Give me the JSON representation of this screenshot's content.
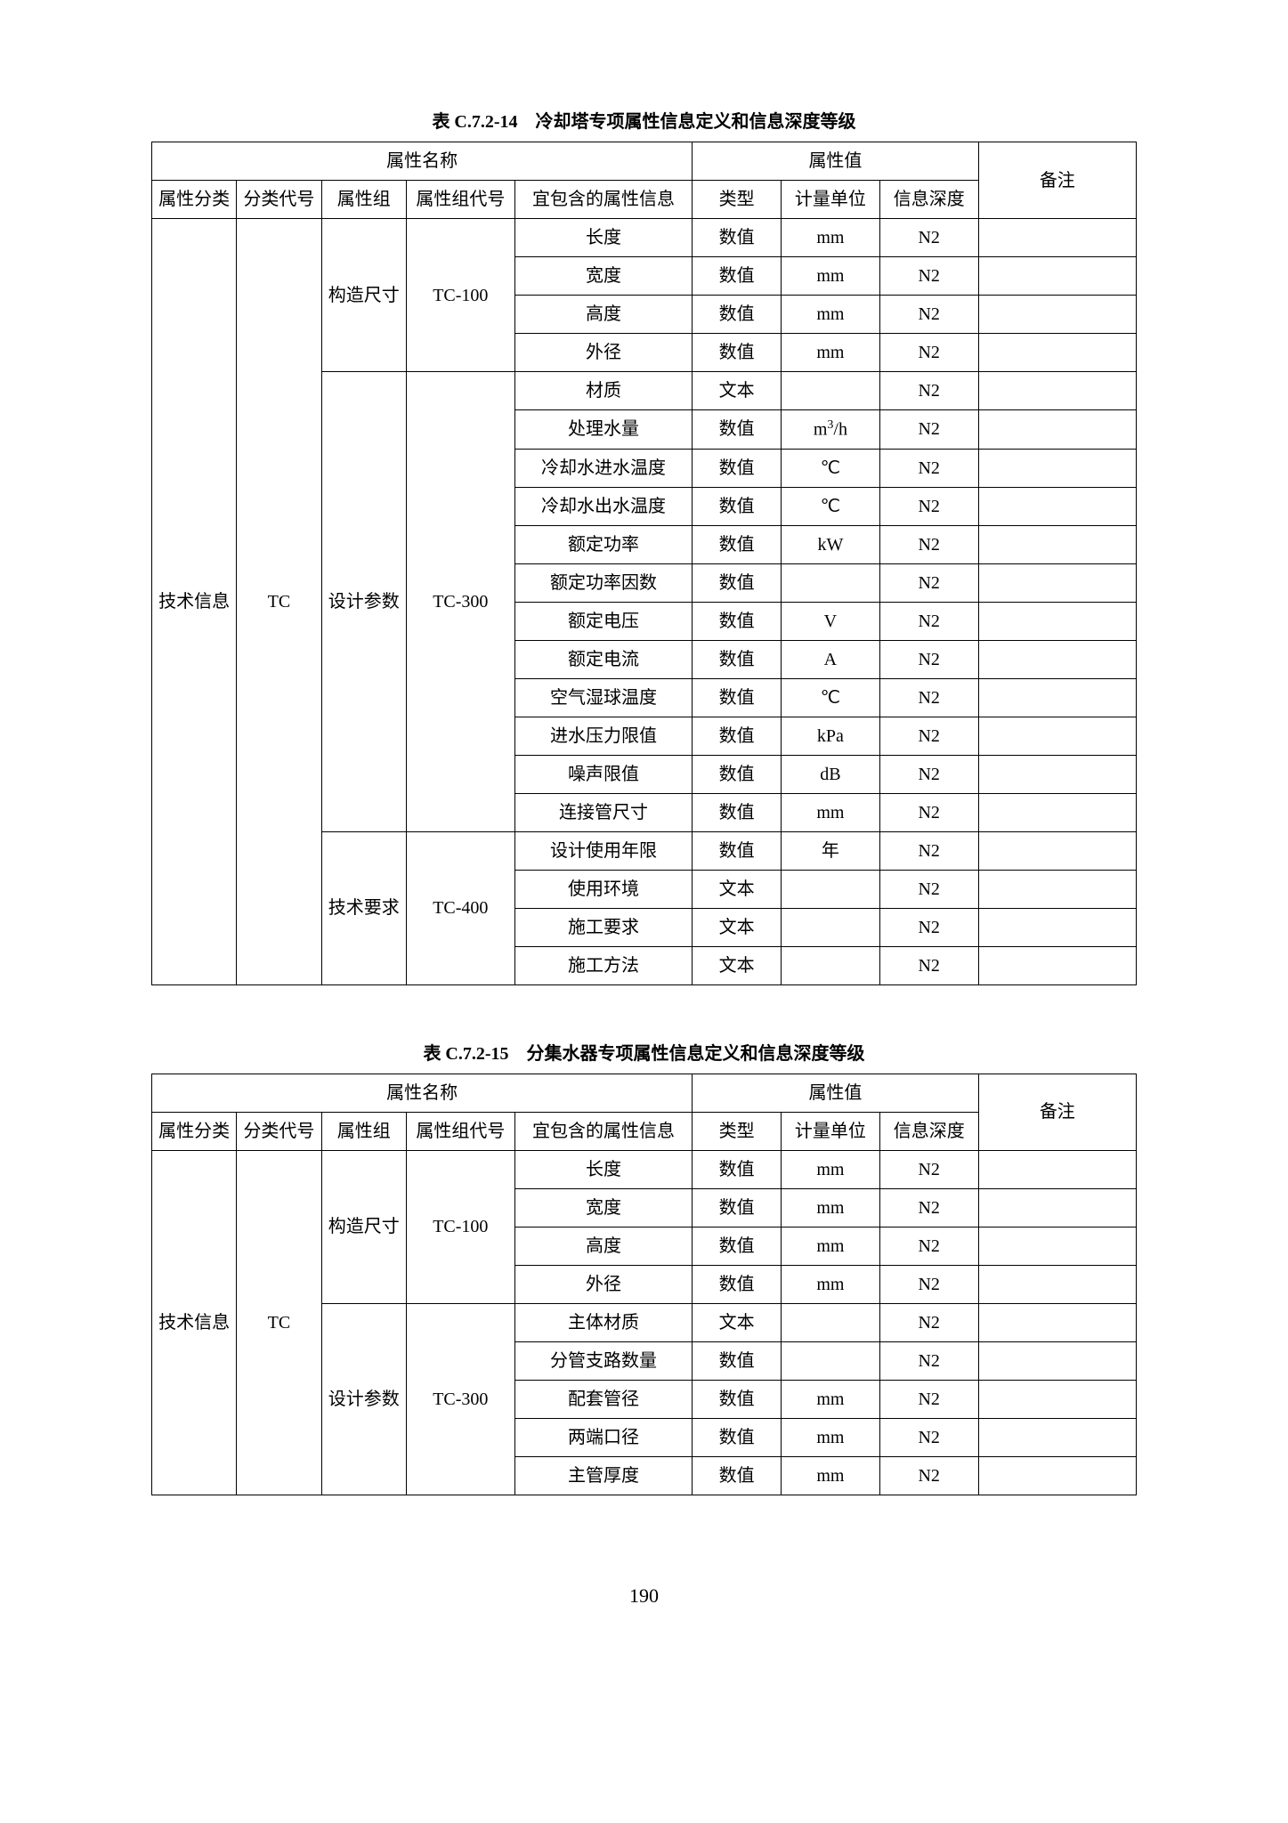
{
  "page_number": "190",
  "tables": [
    {
      "caption": "表 C.7.2-14　冷却塔专项属性信息定义和信息深度等级",
      "header_group_left": "属性名称",
      "header_group_right": "属性值",
      "columns": {
        "attr_cat": "属性分类",
        "cat_code": "分类代号",
        "attr_group": "属性组",
        "group_code": "属性组代号",
        "attr_name": "宜包含的属性信息",
        "type": "类型",
        "unit": "计量单位",
        "depth": "信息深度",
        "note": "备注"
      },
      "attr_cat": "技术信息",
      "cat_code": "TC",
      "groups": [
        {
          "group": "构造尺寸",
          "code": "TC-100",
          "rows": [
            {
              "name": "长度",
              "type": "数值",
              "unit": "mm",
              "depth": "N2",
              "note": ""
            },
            {
              "name": "宽度",
              "type": "数值",
              "unit": "mm",
              "depth": "N2",
              "note": ""
            },
            {
              "name": "高度",
              "type": "数值",
              "unit": "mm",
              "depth": "N2",
              "note": ""
            },
            {
              "name": "外径",
              "type": "数值",
              "unit": "mm",
              "depth": "N2",
              "note": ""
            }
          ]
        },
        {
          "group": "设计参数",
          "code": "TC-300",
          "rows": [
            {
              "name": "材质",
              "type": "文本",
              "unit": "",
              "depth": "N2",
              "note": ""
            },
            {
              "name": "处理水量",
              "type": "数值",
              "unit": "m³/h",
              "depth": "N2",
              "note": ""
            },
            {
              "name": "冷却水进水温度",
              "type": "数值",
              "unit": "℃",
              "depth": "N2",
              "note": ""
            },
            {
              "name": "冷却水出水温度",
              "type": "数值",
              "unit": "℃",
              "depth": "N2",
              "note": ""
            },
            {
              "name": "额定功率",
              "type": "数值",
              "unit": "kW",
              "depth": "N2",
              "note": ""
            },
            {
              "name": "额定功率因数",
              "type": "数值",
              "unit": "",
              "depth": "N2",
              "note": ""
            },
            {
              "name": "额定电压",
              "type": "数值",
              "unit": "V",
              "depth": "N2",
              "note": ""
            },
            {
              "name": "额定电流",
              "type": "数值",
              "unit": "A",
              "depth": "N2",
              "note": ""
            },
            {
              "name": "空气湿球温度",
              "type": "数值",
              "unit": "℃",
              "depth": "N2",
              "note": ""
            },
            {
              "name": "进水压力限值",
              "type": "数值",
              "unit": "kPa",
              "depth": "N2",
              "note": ""
            },
            {
              "name": "噪声限值",
              "type": "数值",
              "unit": "dB",
              "depth": "N2",
              "note": ""
            },
            {
              "name": "连接管尺寸",
              "type": "数值",
              "unit": "mm",
              "depth": "N2",
              "note": ""
            }
          ]
        },
        {
          "group": "技术要求",
          "code": "TC-400",
          "rows": [
            {
              "name": "设计使用年限",
              "type": "数值",
              "unit": "年",
              "depth": "N2",
              "note": ""
            },
            {
              "name": "使用环境",
              "type": "文本",
              "unit": "",
              "depth": "N2",
              "note": ""
            },
            {
              "name": "施工要求",
              "type": "文本",
              "unit": "",
              "depth": "N2",
              "note": ""
            },
            {
              "name": "施工方法",
              "type": "文本",
              "unit": "",
              "depth": "N2",
              "note": ""
            }
          ]
        }
      ]
    },
    {
      "caption": "表 C.7.2-15　分集水器专项属性信息定义和信息深度等级",
      "header_group_left": "属性名称",
      "header_group_right": "属性值",
      "columns": {
        "attr_cat": "属性分类",
        "cat_code": "分类代号",
        "attr_group": "属性组",
        "group_code": "属性组代号",
        "attr_name": "宜包含的属性信息",
        "type": "类型",
        "unit": "计量单位",
        "depth": "信息深度",
        "note": "备注"
      },
      "attr_cat": "技术信息",
      "cat_code": "TC",
      "groups": [
        {
          "group": "构造尺寸",
          "code": "TC-100",
          "rows": [
            {
              "name": "长度",
              "type": "数值",
              "unit": "mm",
              "depth": "N2",
              "note": ""
            },
            {
              "name": "宽度",
              "type": "数值",
              "unit": "mm",
              "depth": "N2",
              "note": ""
            },
            {
              "name": "高度",
              "type": "数值",
              "unit": "mm",
              "depth": "N2",
              "note": ""
            },
            {
              "name": "外径",
              "type": "数值",
              "unit": "mm",
              "depth": "N2",
              "note": ""
            }
          ]
        },
        {
          "group": "设计参数",
          "code": "TC-300",
          "rows": [
            {
              "name": "主体材质",
              "type": "文本",
              "unit": "",
              "depth": "N2",
              "note": ""
            },
            {
              "name": "分管支路数量",
              "type": "数值",
              "unit": "",
              "depth": "N2",
              "note": ""
            },
            {
              "name": "配套管径",
              "type": "数值",
              "unit": "mm",
              "depth": "N2",
              "note": ""
            },
            {
              "name": "两端口径",
              "type": "数值",
              "unit": "mm",
              "depth": "N2",
              "note": ""
            },
            {
              "name": "主管厚度",
              "type": "数值",
              "unit": "mm",
              "depth": "N2",
              "note": ""
            }
          ]
        }
      ]
    }
  ]
}
